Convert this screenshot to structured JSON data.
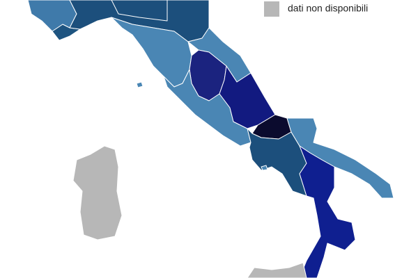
{
  "legend": {
    "label": "dati non disponibili"
  }
}
